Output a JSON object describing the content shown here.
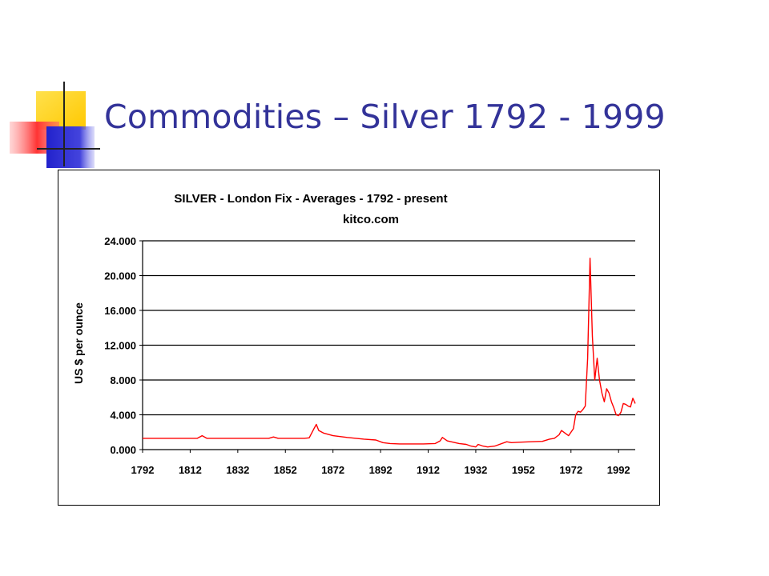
{
  "slide": {
    "title": "Commodities – Silver 1792 - 1999",
    "colors": {
      "title": "#333399",
      "logo_yellow": "#FFD700",
      "logo_blue": "#3333CC",
      "logo_red": "#FF3333"
    }
  },
  "chart_data": {
    "type": "line",
    "title": "SILVER  -  London  Fix - Averages  -  1792 - present",
    "subtitle": "kitco.com",
    "xlabel": "",
    "ylabel": "US $ per ounce",
    "xlim": [
      1792,
      1999
    ],
    "ylim": [
      0,
      24
    ],
    "grid": true,
    "line_color": "#FF0000",
    "x_ticks": [
      "1792",
      "1812",
      "1832",
      "1852",
      "1872",
      "1892",
      "1912",
      "1932",
      "1952",
      "1972",
      "1992"
    ],
    "y_ticks": [
      "24.000",
      "20.000",
      "16.000",
      "12.000",
      "8.000",
      "4.000",
      "0.000"
    ],
    "series": [
      {
        "x": [
          1792,
          1800,
          1810,
          1815,
          1817,
          1819,
          1822,
          1830,
          1840,
          1845,
          1847,
          1849,
          1860,
          1862,
          1864,
          1865,
          1866,
          1868,
          1872,
          1878,
          1885,
          1890,
          1893,
          1896,
          1900,
          1905,
          1910,
          1915,
          1917,
          1918,
          1920,
          1925,
          1928,
          1930,
          1932,
          1933,
          1935,
          1937,
          1940,
          1945,
          1947,
          1950,
          1955,
          1960,
          1963,
          1965,
          1967,
          1968,
          1970,
          1971,
          1973,
          1974,
          1975,
          1976,
          1977,
          1978,
          1979,
          1980,
          1981,
          1982,
          1983,
          1984,
          1985,
          1986,
          1987,
          1988,
          1989,
          1990,
          1991,
          1992,
          1993,
          1994,
          1995,
          1996,
          1997,
          1998,
          1999
        ],
        "y": [
          1.3,
          1.3,
          1.3,
          1.3,
          1.6,
          1.3,
          1.3,
          1.3,
          1.3,
          1.3,
          1.45,
          1.3,
          1.3,
          1.35,
          2.4,
          2.9,
          2.2,
          1.9,
          1.6,
          1.4,
          1.2,
          1.1,
          0.8,
          0.7,
          0.65,
          0.65,
          0.65,
          0.7,
          1.0,
          1.4,
          1.0,
          0.7,
          0.6,
          0.4,
          0.3,
          0.6,
          0.4,
          0.3,
          0.4,
          0.9,
          0.8,
          0.85,
          0.9,
          0.95,
          1.2,
          1.3,
          1.7,
          2.2,
          1.8,
          1.6,
          2.4,
          4.0,
          4.4,
          4.3,
          4.6,
          5.0,
          10.5,
          22.0,
          13.0,
          8.0,
          10.5,
          8.0,
          6.5,
          5.5,
          7.0,
          6.5,
          5.5,
          4.8,
          4.0,
          3.9,
          4.3,
          5.3,
          5.2,
          5.0,
          4.9,
          5.9,
          5.3
        ]
      }
    ]
  }
}
